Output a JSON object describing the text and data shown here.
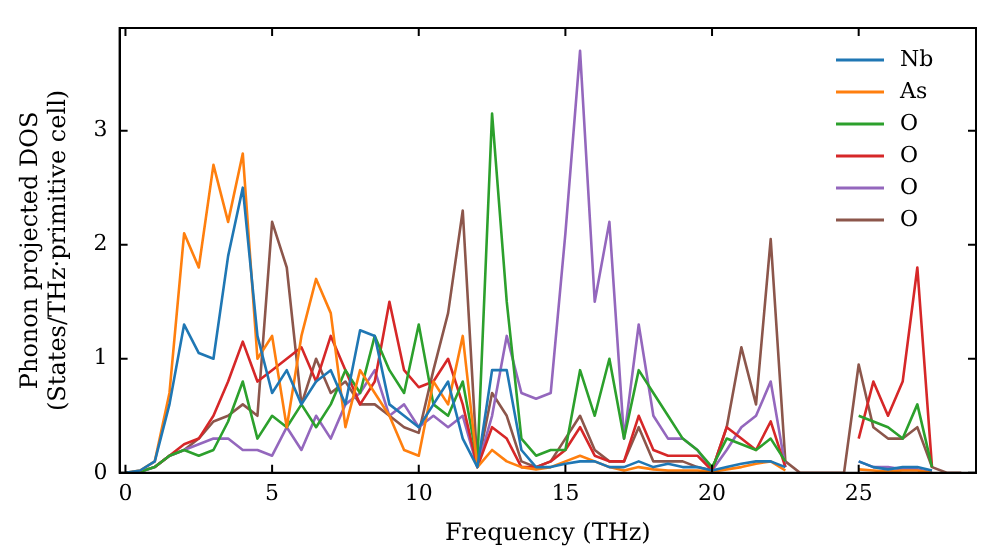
{
  "chart_data": {
    "type": "line",
    "xlabel": "Frequency (THz)",
    "ylabel": "Phonon projected DOS\n(States/THz·primitive cell)",
    "x": [
      0,
      0.5,
      1,
      1.5,
      2,
      2.5,
      3,
      3.5,
      4,
      4.5,
      5,
      5.5,
      6,
      6.5,
      7,
      7.5,
      8,
      8.5,
      9,
      9.5,
      10,
      10.5,
      11,
      11.5,
      12,
      12.5,
      13,
      13.5,
      14,
      14.5,
      15,
      15.5,
      16,
      16.5,
      17,
      17.5,
      18,
      18.5,
      19,
      19.5,
      20,
      20.5,
      21,
      21.5,
      22,
      22.5,
      23,
      23.5,
      24,
      24.5,
      25,
      25.5,
      26,
      26.5,
      27,
      27.5,
      28,
      28.5
    ],
    "series": [
      {
        "name": "Nb",
        "color": "#1f77b4",
        "values": [
          0,
          0.02,
          0.1,
          0.6,
          1.3,
          1.05,
          1.0,
          1.9,
          2.5,
          1.2,
          0.7,
          0.9,
          0.6,
          0.8,
          0.9,
          0.6,
          1.25,
          1.2,
          0.6,
          0.5,
          0.4,
          0.6,
          0.8,
          0.3,
          0.05,
          0.9,
          0.9,
          0.2,
          0.05,
          0.05,
          0.08,
          0.1,
          0.1,
          0.05,
          0.05,
          0.1,
          0.05,
          0.08,
          0.05,
          0.05,
          0.02,
          0.05,
          0.08,
          0.1,
          0.1,
          0.05,
          null,
          null,
          null,
          null,
          0.1,
          0.05,
          0.03,
          0.05,
          0.05,
          0.02,
          null,
          null
        ]
      },
      {
        "name": "As",
        "color": "#ff7f0e",
        "values": [
          0,
          0.02,
          0.1,
          0.7,
          2.1,
          1.8,
          2.7,
          2.2,
          2.8,
          1.0,
          1.2,
          0.4,
          1.2,
          1.7,
          1.4,
          0.4,
          0.9,
          0.7,
          0.5,
          0.2,
          0.15,
          0.8,
          0.6,
          1.2,
          0.05,
          0.2,
          0.1,
          0.05,
          0.03,
          0.05,
          0.1,
          0.15,
          0.1,
          0.05,
          0.02,
          0.05,
          0.03,
          0.02,
          0.02,
          0.02,
          0.01,
          0.03,
          0.05,
          0.08,
          0.1,
          0.02,
          null,
          null,
          null,
          null,
          0.03,
          0.02,
          0.01,
          0.02,
          0.02,
          0,
          null,
          null
        ]
      },
      {
        "name": "O",
        "color": "#2ca02c",
        "values": [
          0,
          0.01,
          0.05,
          0.15,
          0.2,
          0.15,
          0.2,
          0.45,
          0.8,
          0.3,
          0.5,
          0.4,
          0.6,
          0.4,
          0.6,
          0.9,
          0.7,
          1.2,
          0.9,
          0.7,
          1.3,
          0.6,
          0.5,
          0.8,
          0.1,
          3.15,
          1.5,
          0.3,
          0.15,
          0.2,
          0.2,
          0.9,
          0.5,
          1.0,
          0.3,
          0.9,
          0.7,
          0.5,
          0.3,
          0.2,
          0.05,
          0.3,
          0.25,
          0.2,
          0.3,
          0.1,
          null,
          null,
          null,
          null,
          0.5,
          0.45,
          0.4,
          0.3,
          0.6,
          0.05,
          null,
          null
        ]
      },
      {
        "name": "O",
        "color": "#d62728",
        "values": [
          null,
          null,
          0.05,
          0.15,
          0.25,
          0.3,
          0.5,
          0.8,
          1.15,
          0.8,
          0.9,
          1.0,
          1.1,
          0.8,
          1.2,
          0.9,
          0.6,
          0.8,
          1.5,
          0.9,
          0.75,
          0.8,
          1.0,
          0.6,
          0.05,
          0.4,
          0.3,
          0.05,
          0.05,
          0.1,
          0.2,
          0.4,
          0.15,
          0.1,
          0.1,
          0.5,
          0.2,
          0.15,
          0.15,
          0.15,
          0.02,
          0.4,
          0.3,
          0.2,
          0.45,
          0.05,
          null,
          null,
          null,
          null,
          0.3,
          0.8,
          0.5,
          0.8,
          1.8,
          0.05,
          null,
          null
        ]
      },
      {
        "name": "O",
        "color": "#9467bd",
        "values": [
          0,
          0.01,
          0.05,
          0.15,
          0.2,
          0.25,
          0.3,
          0.3,
          0.2,
          0.2,
          0.15,
          0.4,
          0.2,
          0.5,
          0.3,
          0.6,
          0.7,
          0.9,
          0.5,
          0.6,
          0.4,
          0.5,
          0.4,
          0.5,
          0.05,
          0.5,
          1.2,
          0.7,
          0.65,
          0.7,
          2.1,
          3.7,
          1.5,
          2.2,
          0.3,
          1.3,
          0.5,
          0.3,
          0.3,
          0.2,
          0.02,
          0.2,
          0.4,
          0.5,
          0.8,
          0.05,
          null,
          null,
          null,
          null,
          0.1,
          0.05,
          0.05,
          0.03,
          0.03,
          0,
          null,
          null
        ]
      },
      {
        "name": "O",
        "color": "#8c564b",
        "values": [
          0,
          0.01,
          0.05,
          0.15,
          0.2,
          0.3,
          0.45,
          0.5,
          0.6,
          0.5,
          2.2,
          1.8,
          0.6,
          1.0,
          0.7,
          0.8,
          0.6,
          0.6,
          0.5,
          0.4,
          0.35,
          0.9,
          1.4,
          2.3,
          0.05,
          0.7,
          0.5,
          0.1,
          0.05,
          0.1,
          0.3,
          0.5,
          0.2,
          0.1,
          0.1,
          0.4,
          0.1,
          0.1,
          0.1,
          0.05,
          0.02,
          0.4,
          1.1,
          0.6,
          2.05,
          0.1,
          0,
          0,
          0,
          0,
          0.95,
          0.4,
          0.3,
          0.3,
          0.4,
          0.05,
          0,
          0
        ]
      }
    ],
    "xlim": [
      -0.2,
      29
    ],
    "ylim": [
      0,
      3.9
    ],
    "xticks": [
      0,
      5,
      10,
      15,
      20,
      25
    ],
    "yticks": [
      0,
      1,
      2,
      3
    ],
    "grid": false,
    "legend": "top right",
    "marker": "none",
    "line_style": "solid"
  }
}
